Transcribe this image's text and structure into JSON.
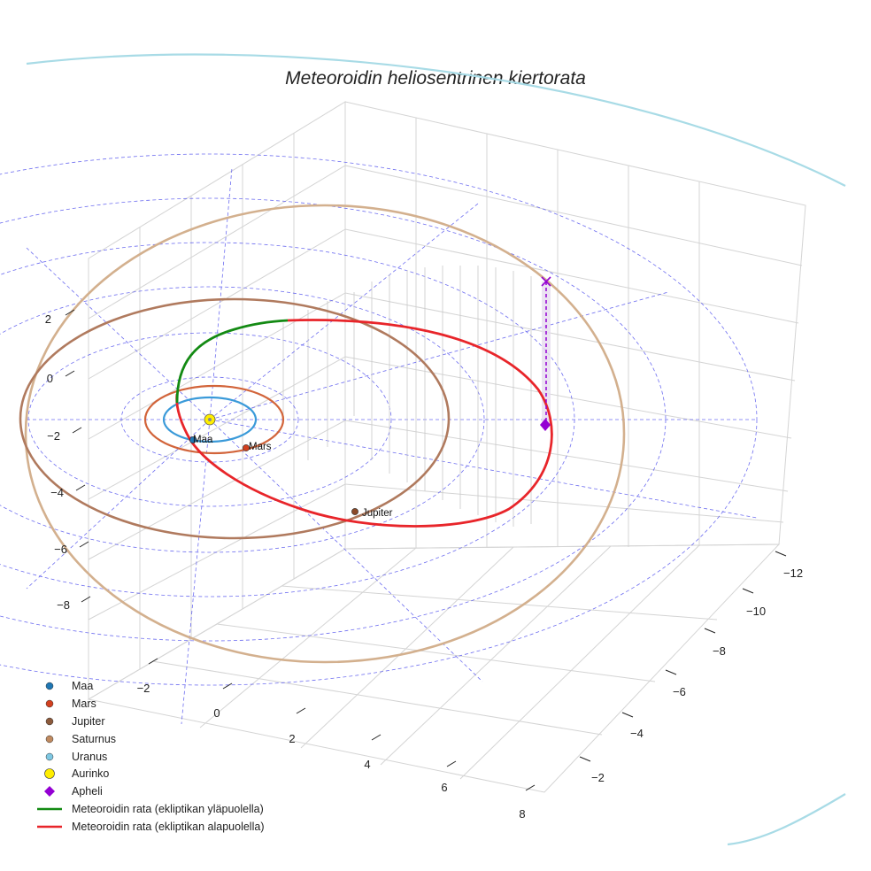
{
  "chart_data": {
    "type": "scatter",
    "title": "Meteoroidin heliosentrinen kiertorata",
    "axes": {
      "x_ticks": [
        "−2",
        "0",
        "2",
        "4",
        "6",
        "8"
      ],
      "y_ticks": [
        "−2",
        "−4",
        "−6",
        "−8",
        "−10",
        "−12"
      ],
      "z_ticks": [
        "2",
        "0",
        "−2",
        "−4",
        "−6",
        "−8"
      ],
      "grid": true
    },
    "planets": [
      {
        "name": "Maa",
        "label": "Maa",
        "color": "#1f77b4",
        "orbit_color": "#3a9ad9",
        "orbit_radius_au": 1.0
      },
      {
        "name": "Mars",
        "label": "Mars",
        "color": "#d2401f",
        "orbit_color": "#d2643a",
        "orbit_radius_au": 1.52
      },
      {
        "name": "Jupiter",
        "label": "Jupiter",
        "color": "#8c4a28",
        "orbit_color": "#b07a5e",
        "orbit_radius_au": 5.2
      },
      {
        "name": "Saturnus",
        "label": "",
        "color": "#c08a60",
        "orbit_color": "#d3b08e",
        "orbit_radius_au": 9.58
      },
      {
        "name": "Uranus",
        "label": "",
        "color": "#7ec8e3",
        "orbit_color": "#a8dbe6",
        "orbit_radius_au": 19.2
      }
    ],
    "sun": {
      "name": "Aurinko",
      "color": "#ffee00"
    },
    "aphelion": {
      "name": "Apheli",
      "color": "#9400d3"
    },
    "meteoroid_orbit": [
      {
        "name": "Meteoroidin rata (ekliptikan yläpuolella)",
        "color": "#138a13"
      },
      {
        "name": "Meteoroidin rata (ekliptikan alapuolella)",
        "color": "#e8252a"
      }
    ],
    "legend": {
      "placement": "bottom-left",
      "entries": [
        {
          "label": "Maa",
          "symbol": "circle",
          "color": "#1f77b4"
        },
        {
          "label": "Mars",
          "symbol": "circle",
          "color": "#d2401f"
        },
        {
          "label": "Jupiter",
          "symbol": "circle",
          "color": "#8c5a3c"
        },
        {
          "label": "Saturnus",
          "symbol": "circle",
          "color": "#c08a60"
        },
        {
          "label": "Uranus",
          "symbol": "circle",
          "color": "#7ec8e3"
        },
        {
          "label": "Aurinko",
          "symbol": "circle-large",
          "color": "#ffee00"
        },
        {
          "label": "Apheli",
          "symbol": "diamond",
          "color": "#9400d3"
        },
        {
          "label": "Meteoroidin rata (ekliptikan yläpuolella)",
          "symbol": "line",
          "color": "#138a13"
        },
        {
          "label": "Meteoroidin rata (ekliptikan alapuolella)",
          "symbol": "line",
          "color": "#e8252a"
        }
      ]
    }
  }
}
